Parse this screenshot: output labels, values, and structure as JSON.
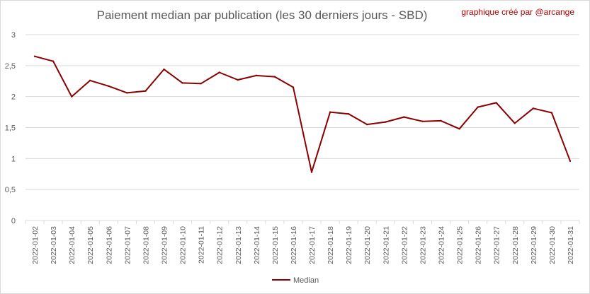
{
  "chart_data": {
    "type": "line",
    "title": "Paiement median par publication (les 30 derniers jours - SBD)",
    "annotation": "graphique créé par @arcange",
    "xlabel": "",
    "ylabel": "",
    "ylim": [
      0,
      3
    ],
    "yticks": [
      "0",
      "0,5",
      "1",
      "1,5",
      "2",
      "2,5",
      "3"
    ],
    "grid": true,
    "legend_position": "bottom",
    "line_color": "#8b0000",
    "categories": [
      "2022-01-02",
      "2022-01-03",
      "2022-01-04",
      "2022-01-05",
      "2022-01-06",
      "2022-01-07",
      "2022-01-08",
      "2022-01-09",
      "2022-01-10",
      "2022-01-11",
      "2022-01-12",
      "2022-01-13",
      "2022-01-14",
      "2022-01-15",
      "2022-01-16",
      "2022-01-17",
      "2022-01-18",
      "2022-01-19",
      "2022-01-20",
      "2022-01-21",
      "2022-01-22",
      "2022-01-23",
      "2022-01-24",
      "2022-01-25",
      "2022-01-26",
      "2022-01-27",
      "2022-01-28",
      "2022-01-29",
      "2022-01-30",
      "2022-01-31"
    ],
    "series": [
      {
        "name": "Median",
        "values": [
          2.65,
          2.57,
          2.0,
          2.26,
          2.17,
          2.06,
          2.09,
          2.44,
          2.22,
          2.21,
          2.39,
          2.27,
          2.34,
          2.32,
          2.15,
          0.78,
          1.75,
          1.72,
          1.55,
          1.59,
          1.67,
          1.6,
          1.61,
          1.48,
          1.83,
          1.9,
          1.57,
          1.81,
          1.74,
          0.96
        ]
      }
    ]
  }
}
